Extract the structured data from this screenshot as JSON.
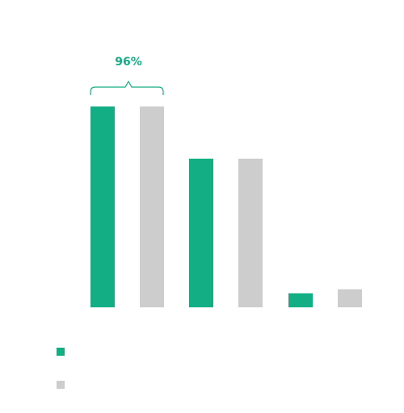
{
  "chart_data": {
    "type": "bar",
    "categories": [
      "",
      "",
      ""
    ],
    "series": [
      {
        "color": "#13AE84",
        "values": [
          100,
          74,
          7
        ]
      },
      {
        "color": "#CDCDCD",
        "values": [
          100,
          74,
          9
        ]
      }
    ],
    "ylim": [
      0,
      100
    ],
    "grid": false,
    "legend_position": "bottom-left",
    "annotation": {
      "text": "96%",
      "spans_categories": [
        0,
        0
      ],
      "color": "#13AE84"
    }
  }
}
